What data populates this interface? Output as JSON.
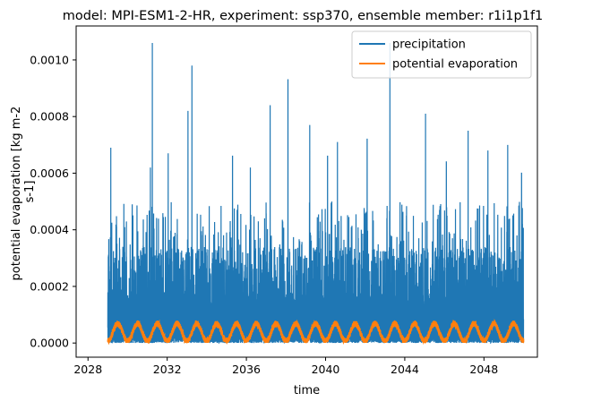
{
  "chart_data": {
    "type": "line",
    "title": "model: MPI-ESM1-2-HR, experiment: ssp370, ensemble member: r1i1p1f1",
    "xlabel": "time",
    "ylabel_lines": [
      "potential evaporation [kg m-2",
      "s-1]"
    ],
    "xlim": [
      2027.4,
      2050.7
    ],
    "ylim": [
      -5e-05,
      0.00112
    ],
    "x_ticks": [
      2028,
      2032,
      2036,
      2040,
      2044,
      2048
    ],
    "x_tick_labels": [
      "2028",
      "2032",
      "2036",
      "2040",
      "2044",
      "2048"
    ],
    "y_ticks": [
      0.0,
      0.0002,
      0.0004,
      0.0006,
      0.0008,
      0.001
    ],
    "y_tick_labels": [
      "0.0000",
      "0.0002",
      "0.0004",
      "0.0006",
      "0.0008",
      "0.0010"
    ],
    "grid": false,
    "legend_position": "upper right",
    "series": [
      {
        "name": "precipitation",
        "color": "#1f77b4",
        "x_range": [
          2029.0,
          2050.0
        ],
        "time_step": "daily",
        "description_of_values": "spiky daily values mostly 0.0000–0.0004, frequent peaks 0.0005–0.0009",
        "notable_peaks": [
          {
            "x": 2029.15,
            "y": 0.00069
          },
          {
            "x": 2031.25,
            "y": 0.00106
          },
          {
            "x": 2031.15,
            "y": 0.00062
          },
          {
            "x": 2032.05,
            "y": 0.00067
          },
          {
            "x": 2033.05,
            "y": 0.00082
          },
          {
            "x": 2033.25,
            "y": 0.00098
          },
          {
            "x": 2035.3,
            "y": 0.00066
          },
          {
            "x": 2036.2,
            "y": 0.00062
          },
          {
            "x": 2037.2,
            "y": 0.00084
          },
          {
            "x": 2038.1,
            "y": 0.00093
          },
          {
            "x": 2039.2,
            "y": 0.00077
          },
          {
            "x": 2040.1,
            "y": 0.00066
          },
          {
            "x": 2040.6,
            "y": 0.00071
          },
          {
            "x": 2042.1,
            "y": 0.00072
          },
          {
            "x": 2043.25,
            "y": 0.00106
          },
          {
            "x": 2045.05,
            "y": 0.00081
          },
          {
            "x": 2046.1,
            "y": 0.00064
          },
          {
            "x": 2047.2,
            "y": 0.00075
          },
          {
            "x": 2048.2,
            "y": 0.00068
          },
          {
            "x": 2049.2,
            "y": 0.0007
          },
          {
            "x": 2049.9,
            "y": 0.0006
          }
        ]
      },
      {
        "name": "potential evaporation",
        "color": "#ff7f0e",
        "x_range": [
          2029.0,
          2050.0
        ],
        "time_step": "daily",
        "description_of_values": "annual cycle between about 0.000005 and 0.00007, peaking mid-year"
      }
    ]
  }
}
